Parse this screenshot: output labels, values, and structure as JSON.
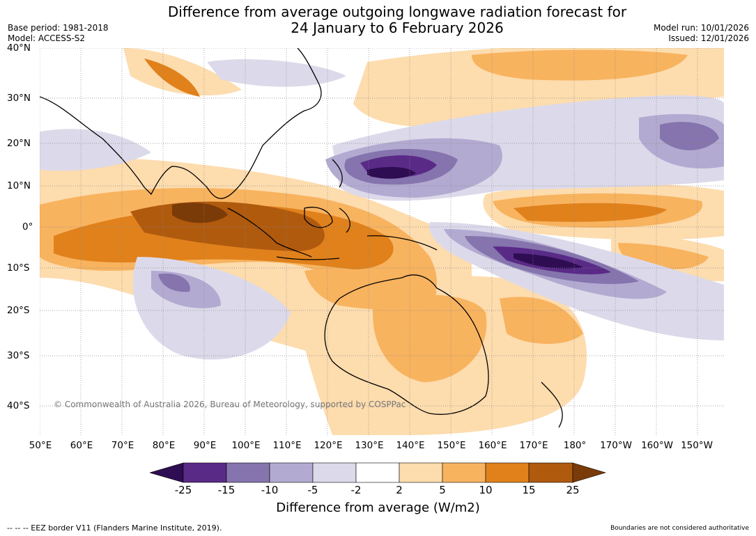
{
  "header": {
    "title_line1": "Difference from average outgoing longwave radiation forecast for",
    "title_line2": "24 January to 6 February 2026",
    "base_period": "Base period: 1981-2018",
    "model": "Model: ACCESS-S2",
    "model_run": "Model run: 10/01/2026",
    "issued": "Issued: 12/01/2026"
  },
  "axes": {
    "lat_labels": [
      "40°N",
      "30°N",
      "20°N",
      "10°N",
      "0°",
      "10°S",
      "20°S",
      "30°S",
      "40°S"
    ],
    "lon_labels": [
      "50°E",
      "60°E",
      "70°E",
      "80°E",
      "90°E",
      "100°E",
      "110°E",
      "120°E",
      "130°E",
      "140°E",
      "150°E",
      "160°E",
      "170°E",
      "180°",
      "170°W",
      "160°W",
      "150°W"
    ]
  },
  "colorbar": {
    "title": "Difference from average (W/m2)",
    "ticks": [
      "-25",
      "-15",
      "-10",
      "-5",
      "-2",
      "2",
      "5",
      "10",
      "15",
      "25"
    ],
    "colors": [
      "#2e0d52",
      "#5a2a87",
      "#8574ad",
      "#b3aad1",
      "#dcdaea",
      "#ffffff",
      "#fddcae",
      "#f8b35f",
      "#e0811c",
      "#b05a0e",
      "#7a3b08"
    ]
  },
  "map": {
    "copyright": "© Commonwealth of Australia 2026, Bureau of Meteorology, supported by COSPPac"
  },
  "footer": {
    "eez_note": "--  --  -- EEZ border V11 (Flanders Marine Institute, 2019).",
    "boundaries_note": "Boundaries are not considered authoritative"
  }
}
